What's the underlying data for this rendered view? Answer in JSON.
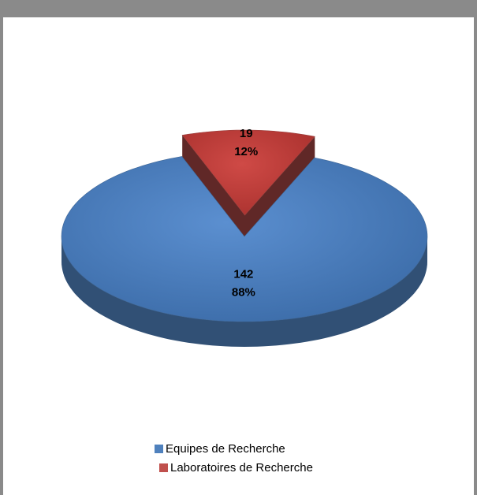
{
  "chart_data": {
    "type": "pie",
    "categories": [
      "Equipes de Recherche",
      "Laboratoires de Recherche"
    ],
    "values": [
      142,
      19
    ],
    "percentage_labels": [
      "88%",
      "12%"
    ],
    "colors": [
      "#4f81bd",
      "#c0504d"
    ],
    "exploded": [
      false,
      true
    ],
    "legend": "bottom"
  }
}
